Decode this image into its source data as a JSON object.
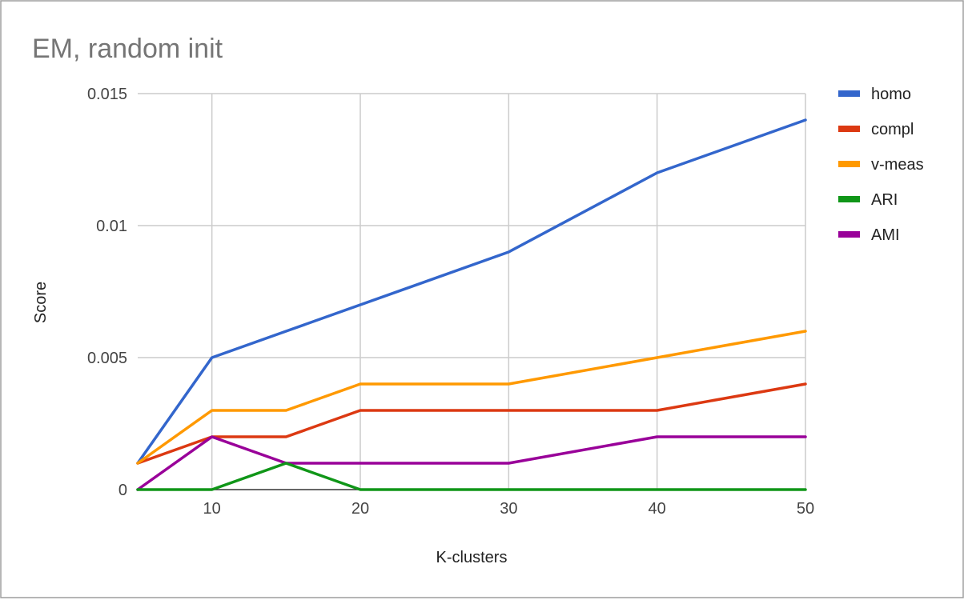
{
  "chart_data": {
    "type": "line",
    "title": "EM, random init",
    "xlabel": "K-clusters",
    "ylabel": "Score",
    "x": [
      5,
      10,
      15,
      20,
      30,
      40,
      50
    ],
    "xlim": [
      5,
      50
    ],
    "ylim": [
      0,
      0.015
    ],
    "xticks": [
      10,
      20,
      30,
      40,
      50
    ],
    "xtick_labels": [
      "10",
      "20",
      "30",
      "40",
      "50"
    ],
    "yticks": [
      0,
      0.005,
      0.01,
      0.015
    ],
    "ytick_labels": [
      "0",
      "0.005",
      "0.01",
      "0.015"
    ],
    "grid": true,
    "legend_position": "right",
    "series": [
      {
        "name": "homo",
        "color": "#3366cc",
        "values": [
          0.001,
          0.005,
          0.006,
          0.007,
          0.009,
          0.012,
          0.014
        ]
      },
      {
        "name": "compl",
        "color": "#dc3912",
        "values": [
          0.001,
          0.002,
          0.002,
          0.003,
          0.003,
          0.003,
          0.004
        ]
      },
      {
        "name": "v-meas",
        "color": "#ff9900",
        "values": [
          0.001,
          0.003,
          0.003,
          0.004,
          0.004,
          0.005,
          0.006
        ]
      },
      {
        "name": "ARI",
        "color": "#109618",
        "values": [
          0,
          0,
          0.001,
          0,
          0,
          0,
          0
        ]
      },
      {
        "name": "AMI",
        "color": "#990099",
        "values": [
          0,
          0.002,
          0.001,
          0.001,
          0.001,
          0.002,
          0.002
        ]
      }
    ]
  }
}
